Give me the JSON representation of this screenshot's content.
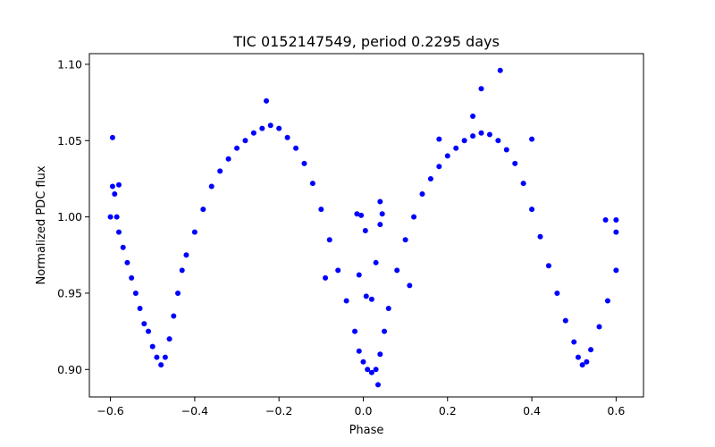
{
  "chart_data": {
    "type": "scatter",
    "title": "TIC 0152147549, period 0.2295 days",
    "xlabel": "Phase",
    "ylabel": "Normalized PDC flux",
    "xlim": [
      -0.65,
      0.665
    ],
    "ylim": [
      0.882,
      1.107
    ],
    "xticks": [
      -0.6,
      -0.4,
      -0.2,
      0.0,
      0.2,
      0.4,
      0.6
    ],
    "xtick_labels": [
      "−0.6",
      "−0.4",
      "−0.2",
      "0.0",
      "0.2",
      "0.4",
      "0.6"
    ],
    "yticks": [
      0.9,
      0.95,
      1.0,
      1.05,
      1.1
    ],
    "ytick_labels": [
      "0.90",
      "0.95",
      "1.00",
      "1.05",
      "1.10"
    ],
    "grid": false,
    "legend": "none",
    "marker_color": "#0000ff",
    "series": [
      {
        "points": [
          [
            -0.6,
            1.0
          ],
          [
            -0.595,
            1.02
          ],
          [
            -0.59,
            1.015
          ],
          [
            -0.585,
            1.0
          ],
          [
            -0.58,
            0.99
          ],
          [
            -0.57,
            0.98
          ],
          [
            -0.56,
            0.97
          ],
          [
            -0.55,
            0.96
          ],
          [
            -0.54,
            0.95
          ],
          [
            -0.53,
            0.94
          ],
          [
            -0.52,
            0.93
          ],
          [
            -0.51,
            0.925
          ],
          [
            -0.5,
            0.915
          ],
          [
            -0.49,
            0.908
          ],
          [
            -0.48,
            0.903
          ],
          [
            -0.47,
            0.908
          ],
          [
            -0.46,
            0.92
          ],
          [
            -0.45,
            0.935
          ],
          [
            -0.44,
            0.95
          ],
          [
            -0.43,
            0.965
          ],
          [
            -0.42,
            0.975
          ],
          [
            -0.4,
            0.99
          ],
          [
            -0.38,
            1.005
          ],
          [
            -0.36,
            1.02
          ],
          [
            -0.34,
            1.03
          ],
          [
            -0.32,
            1.038
          ],
          [
            -0.3,
            1.045
          ],
          [
            -0.28,
            1.05
          ],
          [
            -0.26,
            1.055
          ],
          [
            -0.24,
            1.058
          ],
          [
            -0.22,
            1.06
          ],
          [
            -0.2,
            1.058
          ],
          [
            -0.18,
            1.052
          ],
          [
            -0.16,
            1.045
          ],
          [
            -0.14,
            1.035
          ],
          [
            -0.12,
            1.022
          ],
          [
            -0.1,
            1.005
          ],
          [
            -0.08,
            0.985
          ],
          [
            -0.06,
            0.965
          ],
          [
            -0.04,
            0.945
          ],
          [
            -0.02,
            0.925
          ],
          [
            -0.01,
            0.912
          ],
          [
            0.0,
            0.905
          ],
          [
            0.01,
            0.9
          ],
          [
            0.02,
            0.898
          ],
          [
            0.03,
            0.9
          ],
          [
            0.04,
            0.91
          ],
          [
            0.05,
            0.925
          ],
          [
            0.06,
            0.94
          ],
          [
            0.08,
            0.965
          ],
          [
            0.1,
            0.985
          ],
          [
            0.12,
            1.0
          ],
          [
            0.14,
            1.015
          ],
          [
            0.16,
            1.025
          ],
          [
            0.18,
            1.033
          ],
          [
            0.2,
            1.04
          ],
          [
            0.22,
            1.045
          ],
          [
            0.24,
            1.05
          ],
          [
            0.26,
            1.053
          ],
          [
            0.28,
            1.055
          ],
          [
            0.3,
            1.054
          ],
          [
            0.32,
            1.05
          ],
          [
            0.34,
            1.044
          ],
          [
            0.36,
            1.035
          ],
          [
            0.38,
            1.022
          ],
          [
            0.4,
            1.005
          ],
          [
            0.42,
            0.987
          ],
          [
            0.44,
            0.968
          ],
          [
            0.46,
            0.95
          ],
          [
            0.48,
            0.932
          ],
          [
            0.5,
            0.918
          ],
          [
            0.51,
            0.908
          ],
          [
            0.52,
            0.903
          ],
          [
            0.53,
            0.905
          ],
          [
            0.54,
            0.913
          ],
          [
            0.56,
            0.928
          ],
          [
            0.58,
            0.945
          ],
          [
            0.6,
            0.965
          ],
          [
            0.6,
            0.99
          ],
          [
            -0.595,
            1.052
          ],
          [
            -0.58,
            1.021
          ],
          [
            -0.23,
            1.076
          ],
          [
            0.26,
            1.066
          ],
          [
            0.28,
            1.084
          ],
          [
            0.325,
            1.096
          ],
          [
            0.4,
            1.051
          ],
          [
            0.18,
            1.051
          ],
          [
            -0.015,
            1.002
          ],
          [
            -0.005,
            1.001
          ],
          [
            0.005,
            0.991
          ],
          [
            0.045,
            1.002
          ],
          [
            0.04,
            0.995
          ],
          [
            0.007,
            0.948
          ],
          [
            0.02,
            0.946
          ],
          [
            -0.01,
            0.962
          ],
          [
            0.03,
            0.97
          ],
          [
            0.04,
            1.01
          ],
          [
            0.575,
            0.998
          ],
          [
            0.6,
            0.998
          ],
          [
            0.035,
            0.89
          ],
          [
            -0.09,
            0.96
          ],
          [
            0.11,
            0.955
          ]
        ]
      }
    ]
  }
}
